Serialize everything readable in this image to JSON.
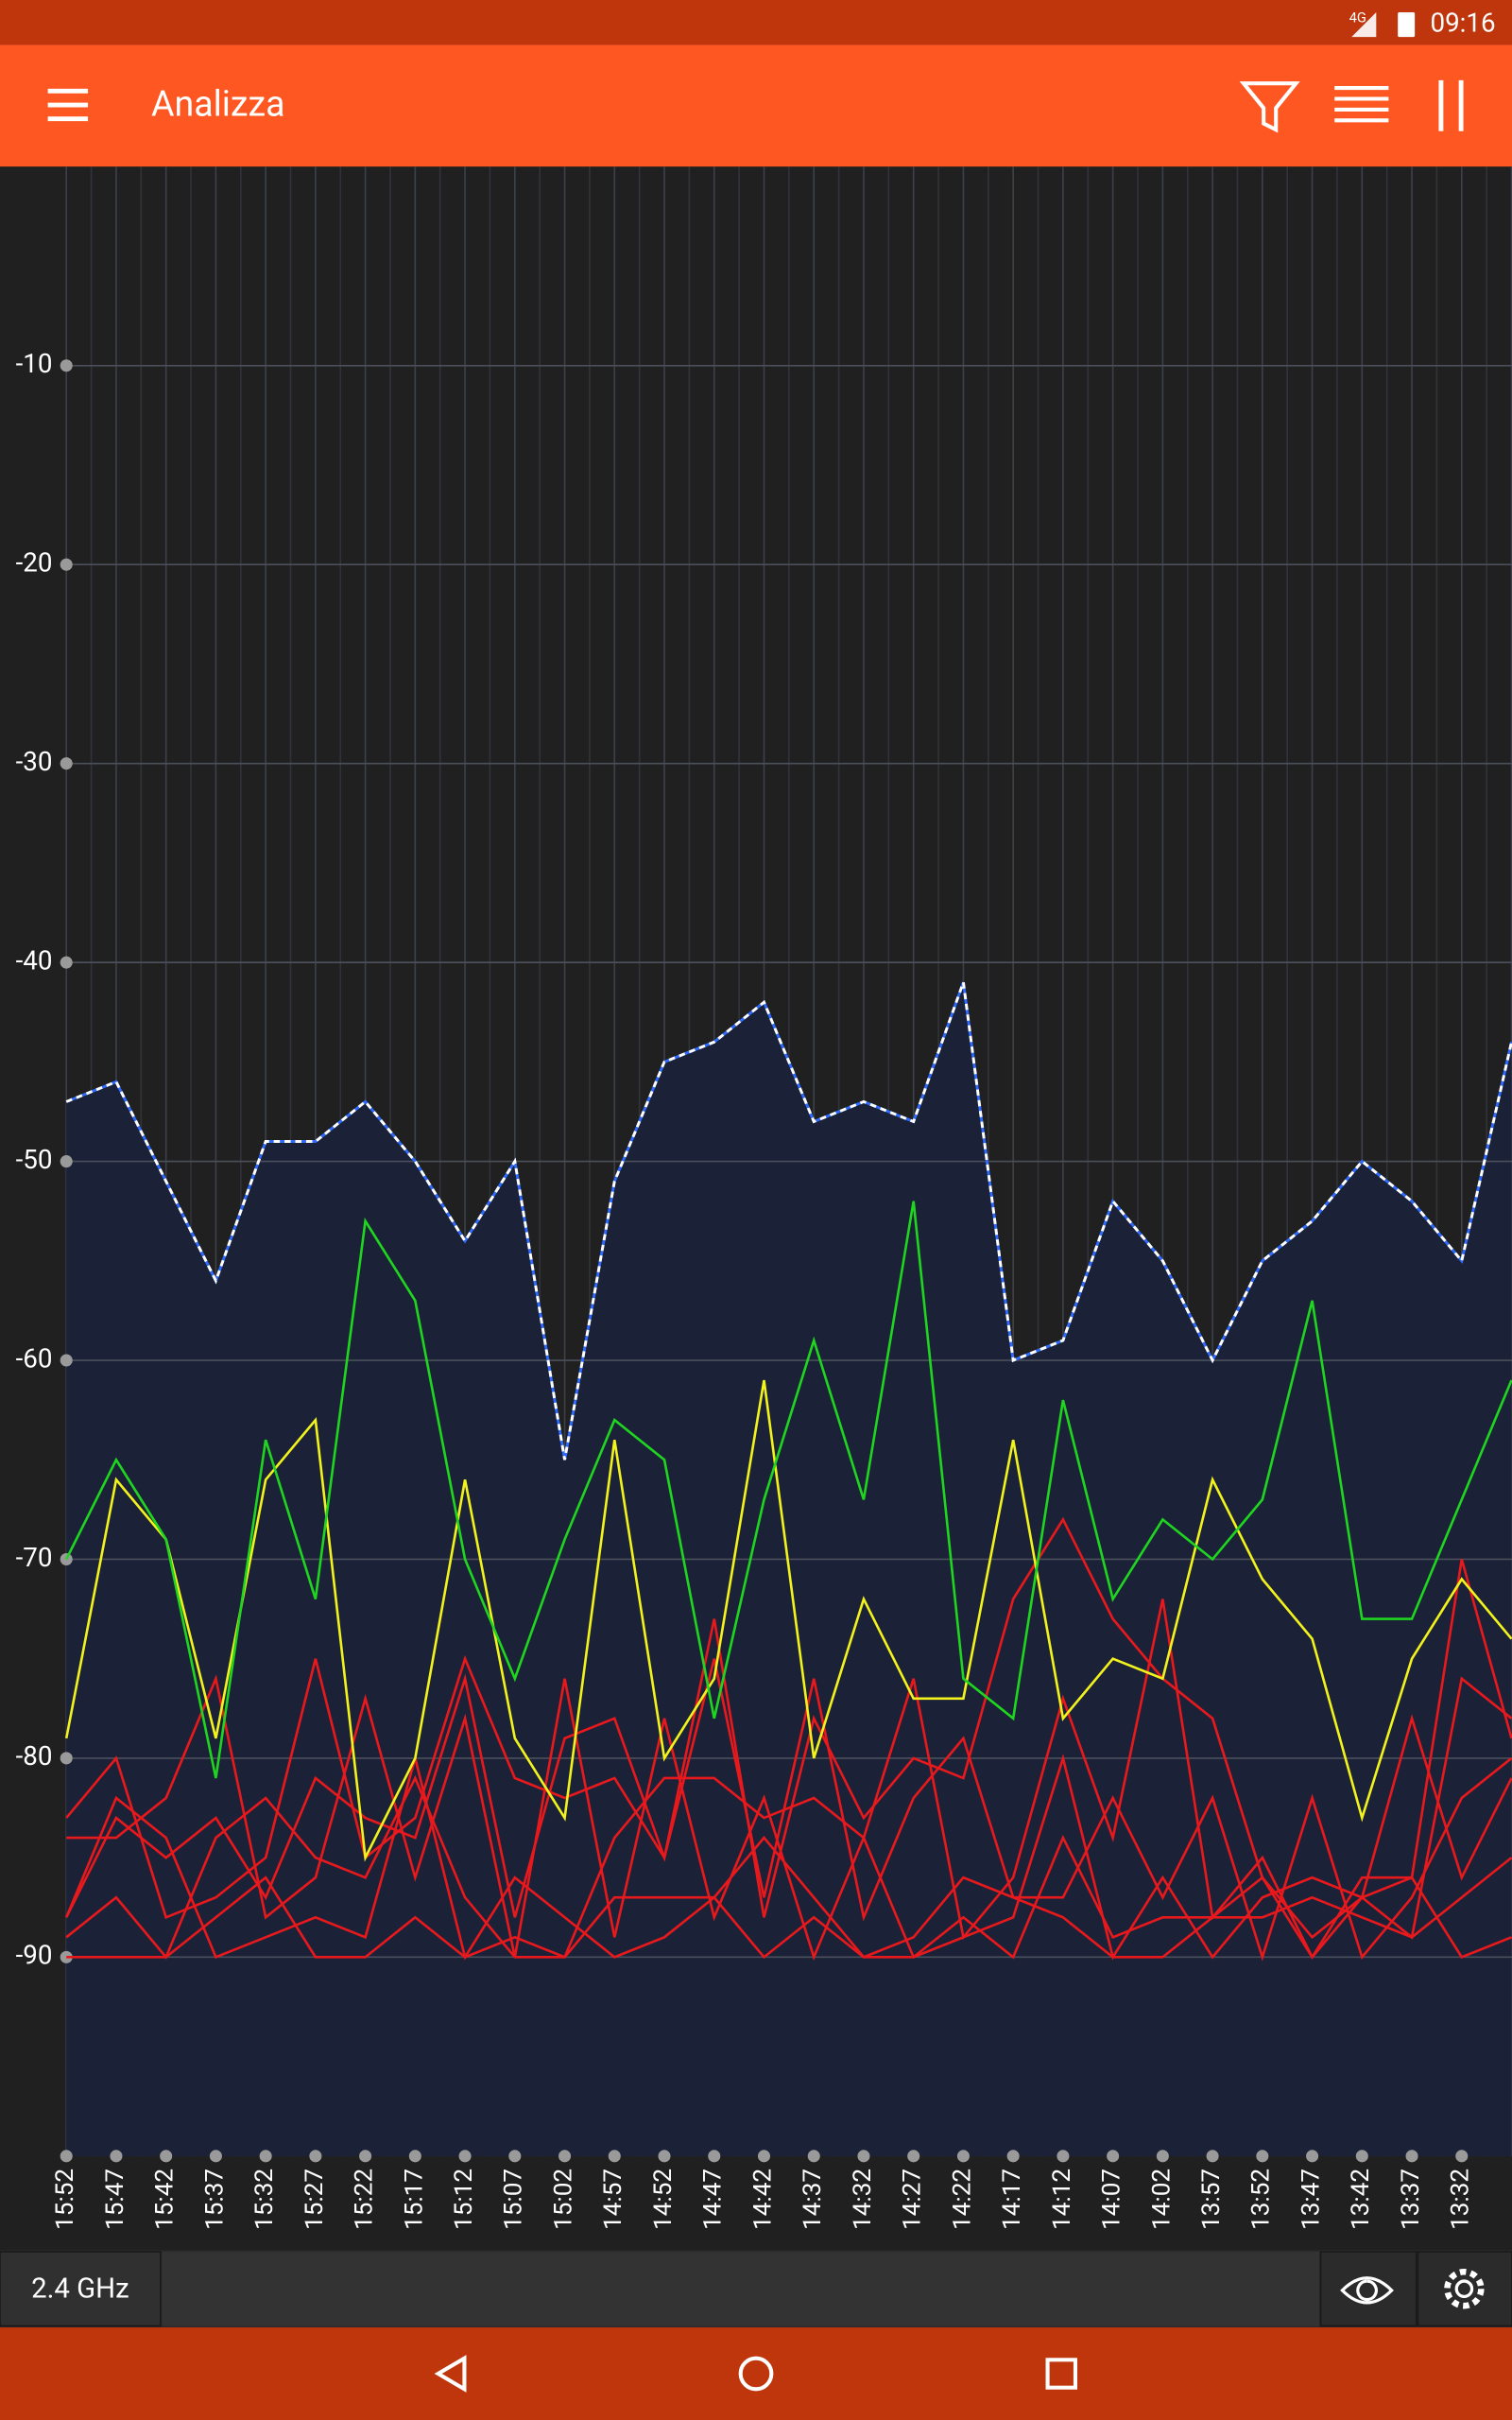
{
  "status_bar": {
    "network": "4G",
    "time": "09:16"
  },
  "app_bar": {
    "title": "Analizza"
  },
  "chart_data": {
    "type": "line",
    "categories": [
      "15:52",
      "15:47",
      "15:42",
      "15:37",
      "15:32",
      "15:27",
      "15:22",
      "15:17",
      "15:12",
      "15:07",
      "15:02",
      "14:57",
      "14:52",
      "14:47",
      "14:42",
      "14:37",
      "14:32",
      "14:27",
      "14:22",
      "14:17",
      "14:12",
      "14:07",
      "14:02",
      "13:57",
      "13:52",
      "13:47",
      "13:42",
      "13:37",
      "13:32",
      null
    ],
    "ylim": [
      -100,
      0
    ],
    "yticks": [
      -10,
      -20,
      -30,
      -40,
      -50,
      -60,
      -70,
      -80,
      -90
    ],
    "grid": true,
    "series": [
      {
        "color": "#ffffff",
        "dashed": true,
        "area_color": "#1b2238",
        "values": [
          -47,
          -46,
          -51,
          -56,
          -49,
          -49,
          -47,
          -50,
          -54,
          -50,
          -65,
          -51,
          -45,
          -44,
          -42,
          -48,
          -47,
          -48,
          -41,
          -60,
          -59,
          -52,
          -55,
          -60,
          -55,
          -53,
          -50,
          -52,
          -55,
          -44
        ]
      },
      {
        "color": "#1fd51f",
        "values": [
          -70,
          -65,
          -69,
          -81,
          -64,
          -72,
          -53,
          -57,
          -70,
          -76,
          -69,
          -63,
          -65,
          -78,
          -67,
          -59,
          -67,
          -52,
          -76,
          -78,
          -62,
          -72,
          -68,
          -70,
          -67,
          -57,
          -73,
          -73,
          -67,
          -61
        ]
      },
      {
        "color": "#f2f21c",
        "values": [
          -79,
          -66,
          -69,
          -79,
          -66,
          -63,
          -85,
          -80,
          -66,
          -79,
          -83,
          -64,
          -80,
          -76,
          -61,
          -80,
          -72,
          -77,
          -77,
          -64,
          -78,
          -75,
          -76,
          -66,
          -71,
          -74,
          -83,
          -75,
          -71,
          -74
        ]
      },
      {
        "color": "#e8191d",
        "values": [
          -83,
          -80,
          -88,
          -87,
          -85,
          -75,
          -85,
          -83,
          -75,
          -81,
          -82,
          -81,
          -85,
          -73,
          -88,
          -78,
          -83,
          -80,
          -81,
          -72,
          -68,
          -73,
          -76,
          -78,
          -86,
          -89,
          -87,
          -86,
          -70,
          -79
        ]
      },
      {
        "color": "#e8191d",
        "values": [
          -84,
          -84,
          -82,
          -76,
          -88,
          -86,
          -77,
          -86,
          -78,
          -90,
          -76,
          -89,
          -78,
          -88,
          -82,
          -90,
          -84,
          -76,
          -89,
          -86,
          -77,
          -84,
          -72,
          -88,
          -85,
          -90,
          -87,
          -78,
          -86,
          -81
        ]
      },
      {
        "color": "#e8191d",
        "values": [
          -88,
          -83,
          -85,
          -83,
          -87,
          -81,
          -83,
          -84,
          -76,
          -88,
          -79,
          -78,
          -85,
          -75,
          -87,
          -76,
          -88,
          -82,
          -79,
          -87,
          -87,
          -82,
          -87,
          -82,
          -90,
          -82,
          -90,
          -87,
          -82,
          -80
        ]
      },
      {
        "color": "#e8191d",
        "values": [
          -89,
          -87,
          -90,
          -84,
          -82,
          -85,
          -86,
          -81,
          -87,
          -90,
          -90,
          -84,
          -81,
          -81,
          -83,
          -82,
          -84,
          -90,
          -89,
          -88,
          -80,
          -90,
          -86,
          -90,
          -87,
          -86,
          -87,
          -89,
          -76,
          -78
        ]
      },
      {
        "color": "#e8191d",
        "values": [
          -90,
          -90,
          -90,
          -88,
          -86,
          -90,
          -90,
          -88,
          -90,
          -89,
          -90,
          -87,
          -87,
          -87,
          -90,
          -88,
          -90,
          -89,
          -86,
          -87,
          -88,
          -90,
          -90,
          -88,
          -86,
          -90,
          -86,
          -86,
          -90,
          -89
        ]
      },
      {
        "color": "#e8191d",
        "values": [
          -88,
          -82,
          -84,
          -90,
          -89,
          -88,
          -89,
          -80,
          -90,
          -86,
          -88,
          -90,
          -89,
          -87,
          -84,
          -87,
          -90,
          -90,
          -88,
          -90,
          -84,
          -89,
          -88,
          -88,
          -88,
          -87,
          -88,
          -89,
          -87,
          -85
        ]
      }
    ]
  },
  "bottom_bar": {
    "band": "2.4 GHz"
  }
}
